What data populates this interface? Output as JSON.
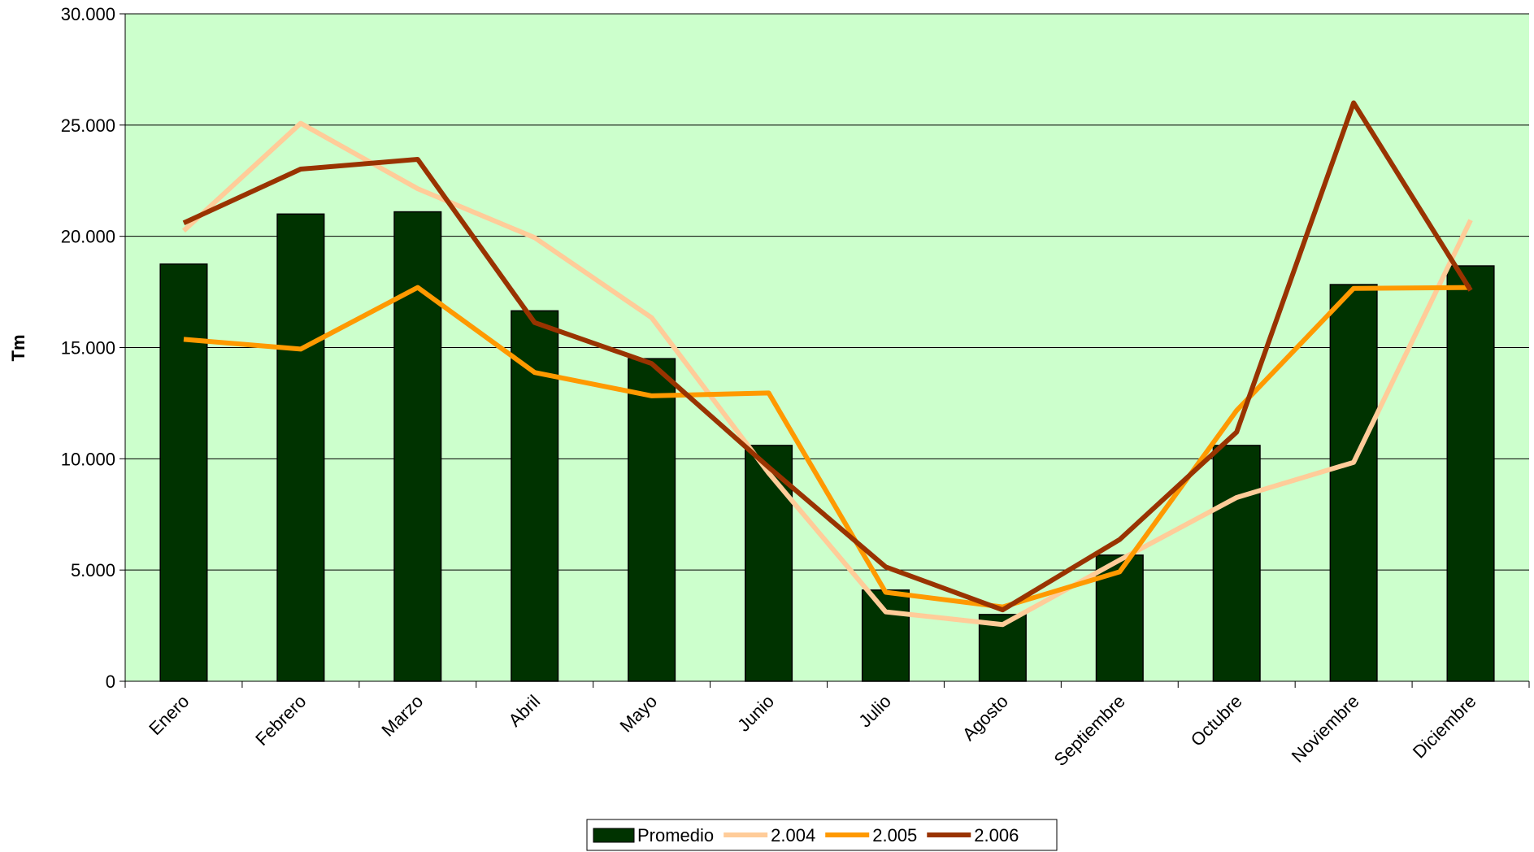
{
  "chart_data": {
    "type": "bar",
    "ylabel": "Tm",
    "categories": [
      "Enero",
      "Febrero",
      "Marzo",
      "Abril",
      "Mayo",
      "Junio",
      "Julio",
      "Agosto",
      "Septiembre",
      "Octubre",
      "Noviembre",
      "Diciembre"
    ],
    "series": [
      {
        "name": "Promedio",
        "type": "bar",
        "color": "#003300",
        "values": [
          18750,
          21000,
          21100,
          16650,
          14500,
          10600,
          4100,
          3000,
          5670,
          10600,
          17830,
          18670
        ]
      },
      {
        "name": "2.004",
        "type": "line",
        "color": "#ffcc99",
        "values": [
          20250,
          25080,
          22140,
          19940,
          16340,
          9360,
          3120,
          2550,
          5450,
          8260,
          9840,
          20730
        ]
      },
      {
        "name": "2.005",
        "type": "line",
        "color": "#ff9900",
        "values": [
          15370,
          14930,
          17700,
          13880,
          12830,
          12960,
          4000,
          3340,
          4920,
          12170,
          17660,
          17700
        ]
      },
      {
        "name": "2.006",
        "type": "line",
        "color": "#993300",
        "values": [
          20600,
          23020,
          23460,
          16120,
          14280,
          9620,
          5140,
          3210,
          6370,
          11200,
          26000,
          17570
        ]
      }
    ],
    "ylim": [
      0,
      30000
    ],
    "yticks": [
      0,
      {
        "value": 5000,
        "label": "5.000"
      },
      {
        "value": 10000,
        "label": "10.000"
      },
      {
        "value": 15000,
        "label": "15.000"
      },
      {
        "value": 20000,
        "label": "20.000"
      },
      {
        "value": 25000,
        "label": "25.000"
      },
      {
        "value": 30000,
        "label": "30.000"
      }
    ],
    "grid": true,
    "background": "#ccffcc",
    "legend": "bottom"
  }
}
